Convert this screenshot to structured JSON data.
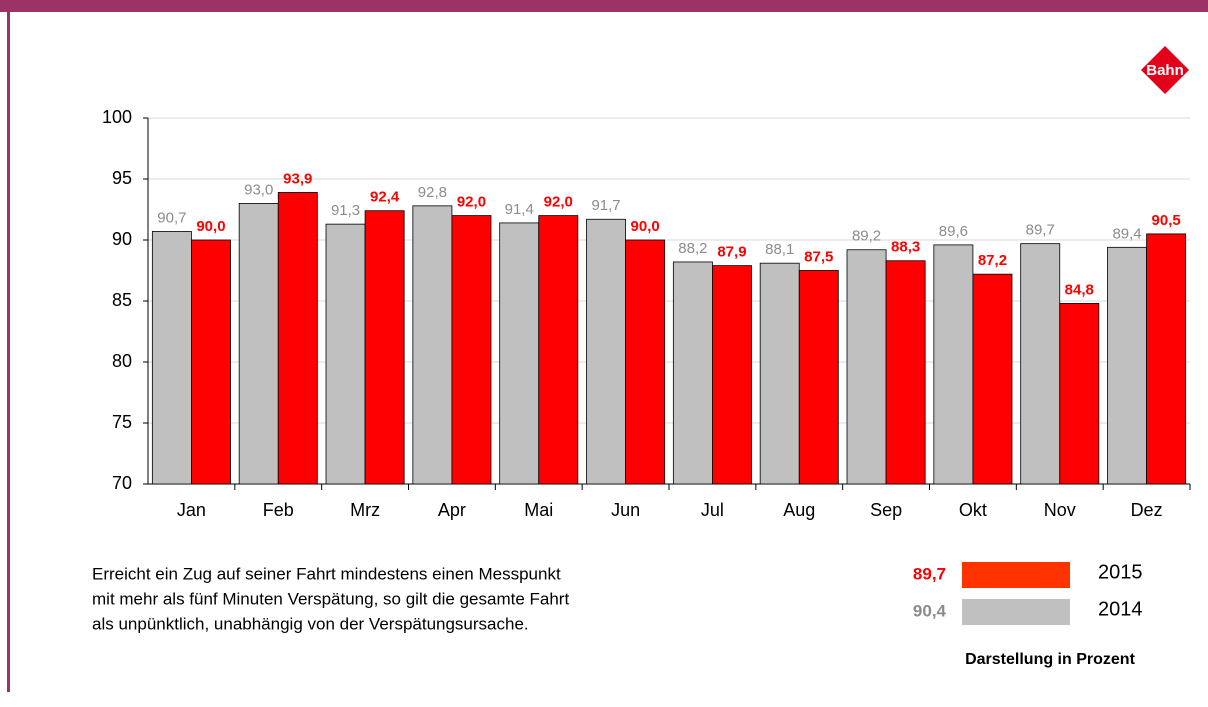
{
  "chart_data": {
    "type": "bar",
    "logo": "Bahn",
    "categories": [
      "Jan",
      "Feb",
      "Mrz",
      "Apr",
      "Mai",
      "Jun",
      "Jul",
      "Aug",
      "Sep",
      "Okt",
      "Nov",
      "Dez"
    ],
    "series": [
      {
        "name": "2014",
        "color": "#c0c0c0",
        "label_color": "#8c8c8c",
        "values": [
          90.7,
          93.0,
          91.3,
          92.8,
          91.4,
          91.7,
          88.2,
          88.1,
          89.2,
          89.6,
          89.7,
          89.4
        ],
        "value_labels": [
          "90,7",
          "93,0",
          "91,3",
          "92,8",
          "91,4",
          "91,7",
          "88,2",
          "88,1",
          "89,2",
          "89,6",
          "89,7",
          "89,4"
        ],
        "annual_average": {
          "value": 90.4,
          "label": "90,4"
        }
      },
      {
        "name": "2015",
        "color": "#ff0000",
        "label_color": "#ff0000",
        "values": [
          90.0,
          93.9,
          92.4,
          92.0,
          92.0,
          90.0,
          87.9,
          87.5,
          88.3,
          87.2,
          84.8,
          90.5
        ],
        "value_labels": [
          "90,0",
          "93,9",
          "92,4",
          "92,0",
          "92,0",
          "90,0",
          "87,9",
          "87,5",
          "88,3",
          "87,2",
          "84,8",
          "90,5"
        ],
        "annual_average": {
          "value": 89.7,
          "label": "89,7"
        }
      }
    ],
    "ylim": [
      70,
      100
    ],
    "yticks": [
      70,
      75,
      80,
      85,
      90,
      95,
      100
    ],
    "grid": true,
    "note": [
      "Erreicht ein Zug auf seiner Fahrt mindestens einen Messpunkt",
      "mit mehr als fünf Minuten Verspätung, so gilt die gesamte Fahrt",
      "als unpünktlich, unabhängig von der Verspätungsursache."
    ],
    "unit_note": "Darstellung in Prozent"
  }
}
